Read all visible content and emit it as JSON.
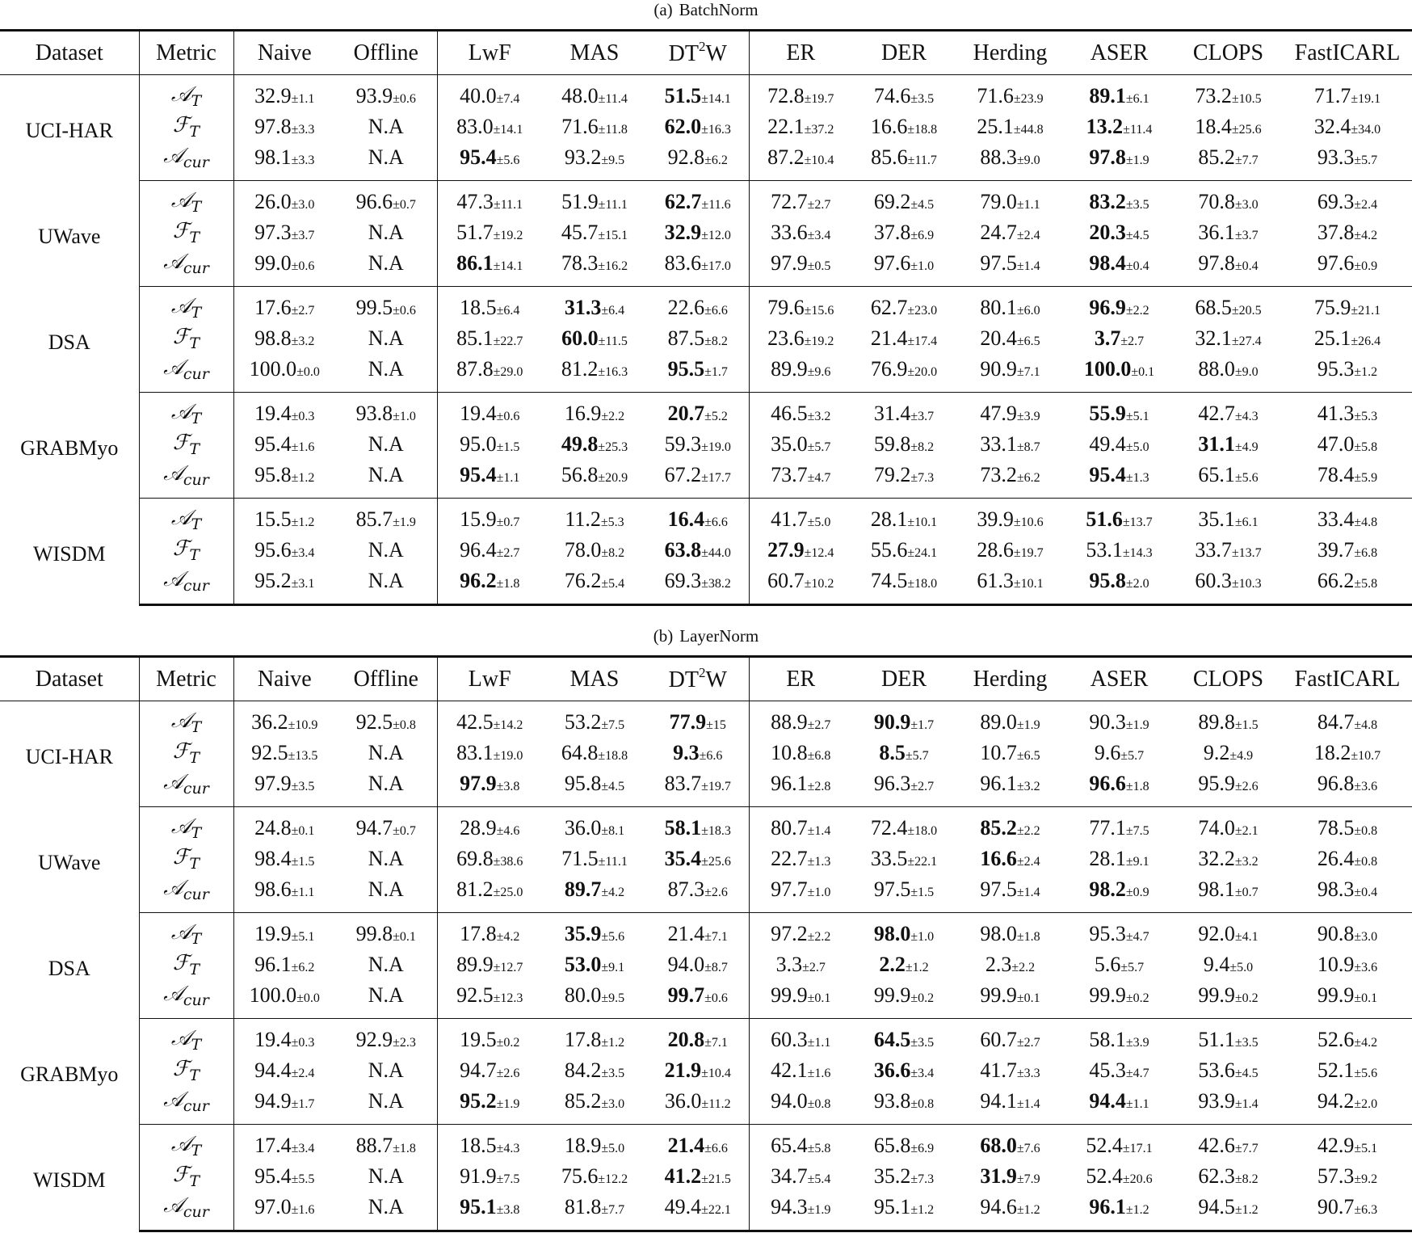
{
  "tables": [
    {
      "caption_label": "(a)",
      "caption": "BatchNorm",
      "headers": [
        {
          "label": "Dataset"
        },
        {
          "label": "Metric"
        },
        {
          "label": "Naive"
        },
        {
          "label": "Offline"
        },
        {
          "label": "LwF"
        },
        {
          "label": "MAS"
        },
        {
          "label": "DT",
          "sup": "2",
          "suffix": "W"
        },
        {
          "label": "ER"
        },
        {
          "label": "DER"
        },
        {
          "label": "Herding"
        },
        {
          "label": "ASER"
        },
        {
          "label": "CLOPS"
        },
        {
          "label": "FastICARL"
        }
      ],
      "metrics": [
        {
          "base": "𝒜",
          "sub": "T"
        },
        {
          "base": "ℱ",
          "sub": "T"
        },
        {
          "base": "𝒜",
          "sub": "cur"
        }
      ],
      "datasets": [
        {
          "name": "UCI-HAR",
          "rows": [
            {
              "cells": [
                "32.9±1.1",
                "93.9±0.6",
                "40.0±7.4",
                "48.0±11.4",
                "51.5±14.1",
                "72.8±19.7",
                "74.6±3.5",
                "71.6±23.9",
                "89.1±6.1",
                "73.2±10.5",
                "71.7±19.1"
              ],
              "bold": [
                4,
                8
              ]
            },
            {
              "cells": [
                "97.8±3.3",
                "N.A",
                "83.0±14.1",
                "71.6±11.8",
                "62.0±16.3",
                "22.1±37.2",
                "16.6±18.8",
                "25.1±44.8",
                "13.2±11.4",
                "18.4±25.6",
                "32.4±34.0"
              ],
              "bold": [
                4,
                8
              ]
            },
            {
              "cells": [
                "98.1±3.3",
                "N.A",
                "95.4±5.6",
                "93.2±9.5",
                "92.8±6.2",
                "87.2±10.4",
                "85.6±11.7",
                "88.3±9.0",
                "97.8±1.9",
                "85.2±7.7",
                "93.3±5.7"
              ],
              "bold": [
                2,
                8
              ]
            }
          ]
        },
        {
          "name": "UWave",
          "rows": [
            {
              "cells": [
                "26.0±3.0",
                "96.6±0.7",
                "47.3±11.1",
                "51.9±11.1",
                "62.7±11.6",
                "72.7±2.7",
                "69.2±4.5",
                "79.0±1.1",
                "83.2±3.5",
                "70.8±3.0",
                "69.3±2.4"
              ],
              "bold": [
                4,
                8
              ]
            },
            {
              "cells": [
                "97.3±3.7",
                "N.A",
                "51.7±19.2",
                "45.7±15.1",
                "32.9±12.0",
                "33.6±3.4",
                "37.8±6.9",
                "24.7±2.4",
                "20.3±4.5",
                "36.1±3.7",
                "37.8±4.2"
              ],
              "bold": [
                4,
                8
              ]
            },
            {
              "cells": [
                "99.0±0.6",
                "N.A",
                "86.1±14.1",
                "78.3±16.2",
                "83.6±17.0",
                "97.9±0.5",
                "97.6±1.0",
                "97.5±1.4",
                "98.4±0.4",
                "97.8±0.4",
                "97.6±0.9"
              ],
              "bold": [
                2,
                8
              ]
            }
          ]
        },
        {
          "name": "DSA",
          "rows": [
            {
              "cells": [
                "17.6±2.7",
                "99.5±0.6",
                "18.5±6.4",
                "31.3±6.4",
                "22.6±6.6",
                "79.6±15.6",
                "62.7±23.0",
                "80.1±6.0",
                "96.9±2.2",
                "68.5±20.5",
                "75.9±21.1"
              ],
              "bold": [
                3,
                8
              ]
            },
            {
              "cells": [
                "98.8±3.2",
                "N.A",
                "85.1±22.7",
                "60.0±11.5",
                "87.5±8.2",
                "23.6±19.2",
                "21.4±17.4",
                "20.4±6.5",
                "3.7±2.7",
                "32.1±27.4",
                "25.1±26.4"
              ],
              "bold": [
                3,
                8
              ]
            },
            {
              "cells": [
                "100.0±0.0",
                "N.A",
                "87.8±29.0",
                "81.2±16.3",
                "95.5±1.7",
                "89.9±9.6",
                "76.9±20.0",
                "90.9±7.1",
                "100.0±0.1",
                "88.0±9.0",
                "95.3±1.2"
              ],
              "bold": [
                4,
                8
              ]
            }
          ]
        },
        {
          "name": "GRABMyo",
          "rows": [
            {
              "cells": [
                "19.4±0.3",
                "93.8±1.0",
                "19.4±0.6",
                "16.9±2.2",
                "20.7±5.2",
                "46.5±3.2",
                "31.4±3.7",
                "47.9±3.9",
                "55.9±5.1",
                "42.7±4.3",
                "41.3±5.3"
              ],
              "bold": [
                4,
                8
              ]
            },
            {
              "cells": [
                "95.4±1.6",
                "N.A",
                "95.0±1.5",
                "49.8±25.3",
                "59.3±19.0",
                "35.0±5.7",
                "59.8±8.2",
                "33.1±8.7",
                "49.4±5.0",
                "31.1±4.9",
                "47.0±5.8"
              ],
              "bold": [
                3,
                9
              ]
            },
            {
              "cells": [
                "95.8±1.2",
                "N.A",
                "95.4±1.1",
                "56.8±20.9",
                "67.2±17.7",
                "73.7±4.7",
                "79.2±7.3",
                "73.2±6.2",
                "95.4±1.3",
                "65.1±5.6",
                "78.4±5.9"
              ],
              "bold": [
                2,
                8
              ]
            }
          ]
        },
        {
          "name": "WISDM",
          "rows": [
            {
              "cells": [
                "15.5±1.2",
                "85.7±1.9",
                "15.9±0.7",
                "11.2±5.3",
                "16.4±6.6",
                "41.7±5.0",
                "28.1±10.1",
                "39.9±10.6",
                "51.6±13.7",
                "35.1±6.1",
                "33.4±4.8"
              ],
              "bold": [
                4,
                8
              ]
            },
            {
              "cells": [
                "95.6±3.4",
                "N.A",
                "96.4±2.7",
                "78.0±8.2",
                "63.8±44.0",
                "27.9±12.4",
                "55.6±24.1",
                "28.6±19.7",
                "53.1±14.3",
                "33.7±13.7",
                "39.7±6.8"
              ],
              "bold": [
                4,
                5
              ]
            },
            {
              "cells": [
                "95.2±3.1",
                "N.A",
                "96.2±1.8",
                "76.2±5.4",
                "69.3±38.2",
                "60.7±10.2",
                "74.5±18.0",
                "61.3±10.1",
                "95.8±2.0",
                "60.3±10.3",
                "66.2±5.8"
              ],
              "bold": [
                2,
                8
              ]
            }
          ]
        }
      ]
    },
    {
      "caption_label": "(b)",
      "caption": "LayerNorm",
      "headers": [
        {
          "label": "Dataset"
        },
        {
          "label": "Metric"
        },
        {
          "label": "Naive"
        },
        {
          "label": "Offline"
        },
        {
          "label": "LwF"
        },
        {
          "label": "MAS"
        },
        {
          "label": "DT",
          "sup": "2",
          "suffix": "W"
        },
        {
          "label": "ER"
        },
        {
          "label": "DER"
        },
        {
          "label": "Herding"
        },
        {
          "label": "ASER"
        },
        {
          "label": "CLOPS"
        },
        {
          "label": "FastICARL"
        }
      ],
      "metrics": [
        {
          "base": "𝒜",
          "sub": "T"
        },
        {
          "base": "ℱ",
          "sub": "T"
        },
        {
          "base": "𝒜",
          "sub": "cur"
        }
      ],
      "datasets": [
        {
          "name": "UCI-HAR",
          "rows": [
            {
              "cells": [
                "36.2±10.9",
                "92.5±0.8",
                "42.5±14.2",
                "53.2±7.5",
                "77.9±15",
                "88.9±2.7",
                "90.9±1.7",
                "89.0±1.9",
                "90.3±1.9",
                "89.8±1.5",
                "84.7±4.8"
              ],
              "bold": [
                4,
                6
              ]
            },
            {
              "cells": [
                "92.5±13.5",
                "N.A",
                "83.1±19.0",
                "64.8±18.8",
                "9.3±6.6",
                "10.8±6.8",
                "8.5±5.7",
                "10.7±6.5",
                "9.6±5.7",
                "9.2±4.9",
                "18.2±10.7"
              ],
              "bold": [
                4,
                6
              ]
            },
            {
              "cells": [
                "97.9±3.5",
                "N.A",
                "97.9±3.8",
                "95.8±4.5",
                "83.7±19.7",
                "96.1±2.8",
                "96.3±2.7",
                "96.1±3.2",
                "96.6±1.8",
                "95.9±2.6",
                "96.8±3.6"
              ],
              "bold": [
                2,
                8
              ]
            }
          ]
        },
        {
          "name": "UWave",
          "rows": [
            {
              "cells": [
                "24.8±0.1",
                "94.7±0.7",
                "28.9±4.6",
                "36.0±8.1",
                "58.1±18.3",
                "80.7±1.4",
                "72.4±18.0",
                "85.2±2.2",
                "77.1±7.5",
                "74.0±2.1",
                "78.5±0.8"
              ],
              "bold": [
                4,
                7
              ]
            },
            {
              "cells": [
                "98.4±1.5",
                "N.A",
                "69.8±38.6",
                "71.5±11.1",
                "35.4±25.6",
                "22.7±1.3",
                "33.5±22.1",
                "16.6±2.4",
                "28.1±9.1",
                "32.2±3.2",
                "26.4±0.8"
              ],
              "bold": [
                4,
                7
              ]
            },
            {
              "cells": [
                "98.6±1.1",
                "N.A",
                "81.2±25.0",
                "89.7±4.2",
                "87.3±2.6",
                "97.7±1.0",
                "97.5±1.5",
                "97.5±1.4",
                "98.2±0.9",
                "98.1±0.7",
                "98.3±0.4"
              ],
              "bold": [
                3,
                8
              ]
            }
          ]
        },
        {
          "name": "DSA",
          "rows": [
            {
              "cells": [
                "19.9±5.1",
                "99.8±0.1",
                "17.8±4.2",
                "35.9±5.6",
                "21.4±7.1",
                "97.2±2.2",
                "98.0±1.0",
                "98.0±1.8",
                "95.3±4.7",
                "92.0±4.1",
                "90.8±3.0"
              ],
              "bold": [
                3,
                6
              ]
            },
            {
              "cells": [
                "96.1±6.2",
                "N.A",
                "89.9±12.7",
                "53.0±9.1",
                "94.0±8.7",
                "3.3±2.7",
                "2.2±1.2",
                "2.3±2.2",
                "5.6±5.7",
                "9.4±5.0",
                "10.9±3.6"
              ],
              "bold": [
                3,
                6
              ]
            },
            {
              "cells": [
                "100.0±0.0",
                "N.A",
                "92.5±12.3",
                "80.0±9.5",
                "99.7±0.6",
                "99.9±0.1",
                "99.9±0.2",
                "99.9±0.1",
                "99.9±0.2",
                "99.9±0.2",
                "99.9±0.1"
              ],
              "bold": [
                4
              ]
            }
          ]
        },
        {
          "name": "GRABMyo",
          "rows": [
            {
              "cells": [
                "19.4±0.3",
                "92.9±2.3",
                "19.5±0.2",
                "17.8±1.2",
                "20.8±7.1",
                "60.3±1.1",
                "64.5±3.5",
                "60.7±2.7",
                "58.1±3.9",
                "51.1±3.5",
                "52.6±4.2"
              ],
              "bold": [
                4,
                6
              ]
            },
            {
              "cells": [
                "94.4±2.4",
                "N.A",
                "94.7±2.6",
                "84.2±3.5",
                "21.9±10.4",
                "42.1±1.6",
                "36.6±3.4",
                "41.7±3.3",
                "45.3±4.7",
                "53.6±4.5",
                "52.1±5.6"
              ],
              "bold": [
                4,
                6
              ]
            },
            {
              "cells": [
                "94.9±1.7",
                "N.A",
                "95.2±1.9",
                "85.2±3.0",
                "36.0±11.2",
                "94.0±0.8",
                "93.8±0.8",
                "94.1±1.4",
                "94.4±1.1",
                "93.9±1.4",
                "94.2±2.0"
              ],
              "bold": [
                2,
                8
              ]
            }
          ]
        },
        {
          "name": "WISDM",
          "rows": [
            {
              "cells": [
                "17.4±3.4",
                "88.7±1.8",
                "18.5±4.3",
                "18.9±5.0",
                "21.4±6.6",
                "65.4±5.8",
                "65.8±6.9",
                "68.0±7.6",
                "52.4±17.1",
                "42.6±7.7",
                "42.9±5.1"
              ],
              "bold": [
                4,
                7
              ]
            },
            {
              "cells": [
                "95.4±5.5",
                "N.A",
                "91.9±7.5",
                "75.6±12.2",
                "41.2±21.5",
                "34.7±5.4",
                "35.2±7.3",
                "31.9±7.9",
                "52.4±20.6",
                "62.3±8.2",
                "57.3±9.2"
              ],
              "bold": [
                4,
                7
              ]
            },
            {
              "cells": [
                "97.0±1.6",
                "N.A",
                "95.1±3.8",
                "81.8±7.7",
                "49.4±22.1",
                "94.3±1.9",
                "95.1±1.2",
                "94.6±1.2",
                "96.1±1.2",
                "94.5±1.2",
                "90.7±6.3"
              ],
              "bold": [
                2,
                8
              ]
            }
          ]
        }
      ]
    }
  ]
}
